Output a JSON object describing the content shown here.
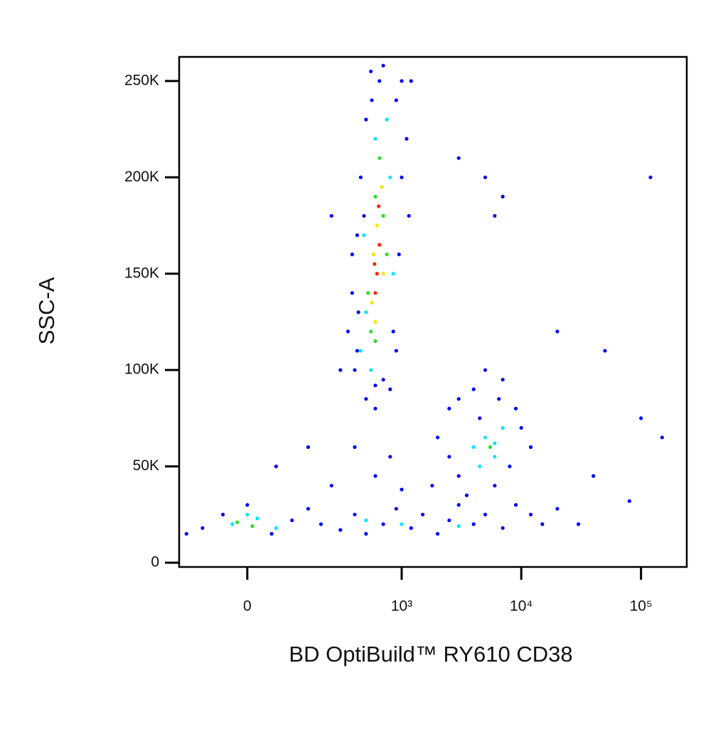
{
  "chart_data": {
    "type": "scatter",
    "xlabel": "BD OptiBuild™ RY610 CD38",
    "ylabel": "SSC-A",
    "xscale": {
      "type": "asinh",
      "width": 103
    },
    "xlim": [
      -177,
      241000
    ],
    "ylim": [
      -2200,
      262500
    ],
    "xticks": [
      0,
      {
        "value": 1000,
        "label": "10³"
      },
      {
        "value": 10000,
        "label": "10⁴"
      },
      {
        "value": 100000,
        "label": "10⁵"
      }
    ],
    "yticks": [
      0,
      {
        "value": 50000,
        "label": "50K"
      },
      {
        "value": 100000,
        "label": "100K"
      },
      {
        "value": 150000,
        "label": "150K"
      },
      {
        "value": 200000,
        "label": "200K"
      },
      {
        "value": 250000,
        "label": "250K"
      }
    ],
    "series": [
      {
        "color": "#0000ff",
        "x": [
          350,
          400,
          380,
          420,
          450,
          500,
          550,
          700,
          900,
          1000,
          950,
          850,
          700,
          500,
          420,
          600,
          1100,
          1000,
          480,
          430,
          380,
          900,
          800,
          560,
          650,
          1200,
          1150,
          300,
          250,
          600,
          2500,
          3000,
          4000,
          5000,
          7000,
          9000,
          10000,
          8000,
          6000,
          3000,
          2000,
          2500,
          12000,
          4500,
          6500,
          3500,
          -100,
          -50,
          0,
          50,
          100,
          150,
          200,
          300,
          400,
          500,
          700,
          900,
          1200,
          1500,
          2000,
          2500,
          3000,
          4000,
          5000,
          7000,
          9000,
          12000,
          15000,
          20000,
          30000,
          -150,
          250,
          600,
          1000,
          1800,
          60,
          150,
          400,
          800,
          3000,
          5000,
          7000,
          6000,
          20000,
          50000,
          100000,
          150000,
          120000,
          40000,
          80000
        ],
        "values": [
          120000,
          100000,
          140000,
          170000,
          200000,
          230000,
          255000,
          258000,
          240000,
          200000,
          160000,
          120000,
          95000,
          85000,
          110000,
          92000,
          220000,
          250000,
          180000,
          130000,
          160000,
          110000,
          90000,
          240000,
          250000,
          250000,
          180000,
          100000,
          180000,
          80000,
          80000,
          85000,
          90000,
          100000,
          95000,
          80000,
          70000,
          50000,
          40000,
          45000,
          65000,
          55000,
          60000,
          75000,
          85000,
          35000,
          18000,
          25000,
          30000,
          15000,
          22000,
          28000,
          20000,
          17000,
          25000,
          15000,
          20000,
          28000,
          18000,
          25000,
          15000,
          22000,
          30000,
          20000,
          25000,
          18000,
          30000,
          25000,
          20000,
          28000,
          20000,
          15000,
          40000,
          45000,
          38000,
          40000,
          50000,
          60000,
          60000,
          55000,
          210000,
          200000,
          190000,
          180000,
          120000,
          110000,
          75000,
          65000,
          200000,
          45000,
          32000
        ]
      },
      {
        "color": "#00e5ff",
        "x": [
          450,
          500,
          600,
          750,
          800,
          550,
          850,
          480,
          4000,
          5000,
          6000,
          7000,
          4500,
          6000,
          -30,
          20,
          60,
          0,
          500,
          1000,
          3000
        ],
        "values": [
          110000,
          130000,
          220000,
          230000,
          200000,
          100000,
          150000,
          170000,
          60000,
          65000,
          55000,
          70000,
          50000,
          62000,
          20000,
          23000,
          18000,
          25000,
          22000,
          20000,
          19000
        ]
      },
      {
        "color": "#2bdd2b",
        "x": [
          520,
          600,
          650,
          700,
          550,
          750,
          600,
          -20,
          10,
          5500
        ],
        "values": [
          140000,
          190000,
          210000,
          180000,
          120000,
          160000,
          115000,
          21000,
          19000,
          60000
        ]
      },
      {
        "color": "#f0e800",
        "x": [
          580,
          620,
          680,
          560,
          700,
          600
        ],
        "values": [
          160000,
          175000,
          195000,
          135000,
          150000,
          125000
        ]
      },
      {
        "color": "#ff2000",
        "x": [
          620,
          650,
          600,
          640,
          590
        ],
        "values": [
          150000,
          165000,
          140000,
          185000,
          155000
        ]
      }
    ]
  }
}
